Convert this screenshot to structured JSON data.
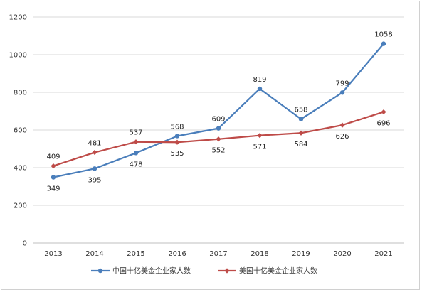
{
  "chart_data": {
    "type": "line",
    "title": "",
    "xlabel": "",
    "ylabel": "",
    "categories": [
      "2013",
      "2014",
      "2015",
      "2016",
      "2017",
      "2018",
      "2019",
      "2020",
      "2021"
    ],
    "ylim": [
      0,
      1200
    ],
    "yticks": [
      0,
      200,
      400,
      600,
      800,
      1000,
      1200
    ],
    "grid": "horizontal",
    "legend_position": "bottom",
    "series": [
      {
        "name": "中国十亿美金企业家人数",
        "color": "#4a7ebb",
        "values": [
          349,
          395,
          478,
          568,
          609,
          819,
          658,
          799,
          1058
        ],
        "label_positions": [
          "below",
          "below",
          "below",
          "above",
          "above",
          "above",
          "above",
          "above",
          "above"
        ]
      },
      {
        "name": "美国十亿美金企业家人数",
        "color": "#be4b48",
        "values": [
          409,
          481,
          537,
          535,
          552,
          571,
          584,
          626,
          696
        ],
        "label_positions": [
          "above",
          "above",
          "above",
          "below",
          "below",
          "below",
          "below",
          "below",
          "below"
        ]
      }
    ]
  }
}
